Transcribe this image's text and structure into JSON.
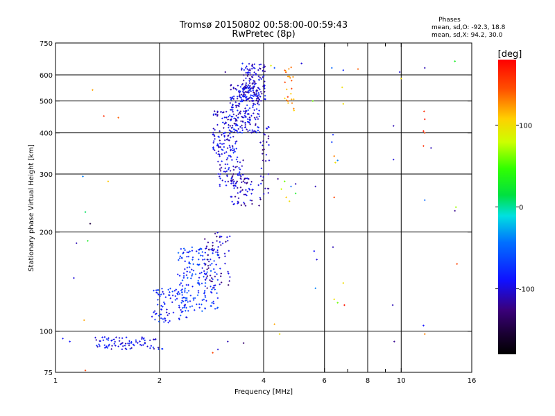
{
  "chart_data": {
    "type": "scatter",
    "title": "Tromsø 20150802 00:58:00-00:59:43",
    "subtitle": "RwPretec (8p)",
    "xlabel": "Frequency [MHz]",
    "ylabel": "Stationary phase Virtual Height [km]",
    "x_scale": "log",
    "y_scale": "log",
    "xlim": [
      1,
      16
    ],
    "ylim": [
      75,
      750
    ],
    "x_ticks": [
      1,
      2,
      4,
      6,
      8,
      10,
      16
    ],
    "x_tick_labels": [
      "1",
      "2",
      "4",
      "6",
      "8",
      "10",
      "16"
    ],
    "x_minor_ticks": [
      7,
      9
    ],
    "x_gridlines": [
      2,
      4,
      6,
      8,
      10
    ],
    "y_ticks": [
      75,
      100,
      200,
      300,
      400,
      500,
      600,
      750
    ],
    "y_tick_labels": [
      "75",
      "100",
      "200",
      "300",
      "400",
      "500",
      "600",
      "750"
    ],
    "y_gridlines": [
      100,
      200,
      300,
      400,
      500,
      600
    ],
    "grid": true,
    "phases_info": {
      "title": "Phases",
      "line1": "mean, sd,O: -92.3, 18.8",
      "line2": "mean, sd,X:  94.2, 30.0"
    },
    "colorbar": {
      "label": "[deg]",
      "min": -180,
      "max": 180,
      "ticks": [
        100,
        0,
        -100
      ],
      "tick_labels": [
        "100",
        "0",
        "-100"
      ]
    },
    "series": [
      {
        "clusters": [
          {
            "f": [
              1.3,
              1.85
            ],
            "h": [
              88,
              96
            ],
            "phase": -95,
            "n": 70
          },
          {
            "f": [
              1.87,
              2.05
            ],
            "h": [
              88,
              95
            ],
            "phase": -90,
            "n": 12
          },
          {
            "f": [
              1.9,
              2.4
            ],
            "h": [
              105,
              135
            ],
            "phase": -80,
            "n": 80
          },
          {
            "f": [
              2.25,
              2.95
            ],
            "h": [
              115,
              180
            ],
            "phase": -75,
            "n": 170
          },
          {
            "f": [
              2.7,
              3.2
            ],
            "h": [
              135,
              200
            ],
            "phase": -110,
            "n": 70
          },
          {
            "f": [
              2.85,
              3.35
            ],
            "h": [
              340,
              470
            ],
            "phase": -95,
            "n": 120
          },
          {
            "f": [
              2.95,
              3.5
            ],
            "h": [
              270,
              340
            ],
            "phase": -100,
            "n": 60
          },
          {
            "f": [
              3.2,
              3.75
            ],
            "h": [
              240,
              300
            ],
            "phase": -105,
            "n": 60
          },
          {
            "f": [
              3.2,
              3.9
            ],
            "h": [
              400,
              560
            ],
            "phase": -95,
            "n": 200
          },
          {
            "f": [
              3.45,
              4.05
            ],
            "h": [
              500,
              650
            ],
            "phase": -100,
            "n": 130
          },
          {
            "f": [
              3.85,
              4.15
            ],
            "h": [
              240,
              420
            ],
            "phase": -110,
            "n": 35
          },
          {
            "f": [
              4.6,
              4.9
            ],
            "h": [
              460,
              640
            ],
            "phase": 130,
            "n": 24
          }
        ],
        "points": [
          {
            "f": 1.05,
            "h": 95,
            "phase": -90
          },
          {
            "f": 1.1,
            "h": 93,
            "phase": -90
          },
          {
            "f": 1.13,
            "h": 145,
            "phase": -100
          },
          {
            "f": 1.15,
            "h": 185,
            "phase": -110
          },
          {
            "f": 1.2,
            "h": 295,
            "phase": -40
          },
          {
            "f": 1.22,
            "h": 230,
            "phase": 10
          },
          {
            "f": 1.24,
            "h": 188,
            "phase": 30
          },
          {
            "f": 1.26,
            "h": 212,
            "phase": -150
          },
          {
            "f": 1.28,
            "h": 540,
            "phase": 120
          },
          {
            "f": 1.21,
            "h": 108,
            "phase": 120
          },
          {
            "f": 1.22,
            "h": 76,
            "phase": 150
          },
          {
            "f": 1.38,
            "h": 450,
            "phase": 160
          },
          {
            "f": 1.42,
            "h": 285,
            "phase": 110
          },
          {
            "f": 1.52,
            "h": 445,
            "phase": 140
          },
          {
            "f": 2.85,
            "h": 86,
            "phase": 150
          },
          {
            "f": 2.95,
            "h": 88,
            "phase": -100
          },
          {
            "f": 3.15,
            "h": 93,
            "phase": -110
          },
          {
            "f": 3.5,
            "h": 92,
            "phase": -130
          },
          {
            "f": 4.3,
            "h": 105,
            "phase": 120
          },
          {
            "f": 4.45,
            "h": 98,
            "phase": 100
          },
          {
            "f": 4.5,
            "h": 270,
            "phase": 80
          },
          {
            "f": 4.6,
            "h": 285,
            "phase": 60
          },
          {
            "f": 4.65,
            "h": 255,
            "phase": 110
          },
          {
            "f": 4.75,
            "h": 248,
            "phase": 100
          },
          {
            "f": 4.8,
            "h": 275,
            "phase": -50
          },
          {
            "f": 4.95,
            "h": 280,
            "phase": -110
          },
          {
            "f": 4.95,
            "h": 262,
            "phase": 30
          },
          {
            "f": 3.1,
            "h": 612,
            "phase": -120
          },
          {
            "f": 3.55,
            "h": 630,
            "phase": -100
          },
          {
            "f": 4.2,
            "h": 640,
            "phase": 90
          },
          {
            "f": 4.3,
            "h": 630,
            "phase": -60
          },
          {
            "f": 4.15,
            "h": 330,
            "phase": -100
          },
          {
            "f": 4.4,
            "h": 290,
            "phase": -120
          },
          {
            "f": 5.15,
            "h": 650,
            "phase": -100
          },
          {
            "f": 5.55,
            "h": 500,
            "phase": 60
          },
          {
            "f": 5.65,
            "h": 275,
            "phase": -110
          },
          {
            "f": 5.6,
            "h": 175,
            "phase": -90
          },
          {
            "f": 5.7,
            "h": 165,
            "phase": -100
          },
          {
            "f": 5.65,
            "h": 135,
            "phase": -40
          },
          {
            "f": 6.3,
            "h": 630,
            "phase": -50
          },
          {
            "f": 6.35,
            "h": 395,
            "phase": -80
          },
          {
            "f": 6.3,
            "h": 375,
            "phase": -70
          },
          {
            "f": 6.4,
            "h": 340,
            "phase": 130
          },
          {
            "f": 6.45,
            "h": 325,
            "phase": 100
          },
          {
            "f": 6.55,
            "h": 330,
            "phase": -40
          },
          {
            "f": 6.4,
            "h": 255,
            "phase": 150
          },
          {
            "f": 6.35,
            "h": 180,
            "phase": -110
          },
          {
            "f": 6.4,
            "h": 125,
            "phase": 100
          },
          {
            "f": 6.55,
            "h": 122,
            "phase": 60
          },
          {
            "f": 6.8,
            "h": 620,
            "phase": -80
          },
          {
            "f": 6.75,
            "h": 550,
            "phase": 100
          },
          {
            "f": 6.8,
            "h": 490,
            "phase": 100
          },
          {
            "f": 6.8,
            "h": 140,
            "phase": 100
          },
          {
            "f": 6.85,
            "h": 120,
            "phase": 170
          },
          {
            "f": 7.5,
            "h": 625,
            "phase": 140
          },
          {
            "f": 9.5,
            "h": 420,
            "phase": -110
          },
          {
            "f": 9.5,
            "h": 332,
            "phase": -100
          },
          {
            "f": 9.45,
            "h": 120,
            "phase": -110
          },
          {
            "f": 9.55,
            "h": 93,
            "phase": -120
          },
          {
            "f": 9.9,
            "h": 612,
            "phase": -100
          },
          {
            "f": 10,
            "h": 585,
            "phase": 100
          },
          {
            "f": 11.7,
            "h": 630,
            "phase": -110
          },
          {
            "f": 11.65,
            "h": 465,
            "phase": 160
          },
          {
            "f": 11.7,
            "h": 440,
            "phase": 170
          },
          {
            "f": 11.6,
            "h": 405,
            "phase": 170
          },
          {
            "f": 11.7,
            "h": 400,
            "phase": 150
          },
          {
            "f": 11.6,
            "h": 365,
            "phase": 160
          },
          {
            "f": 12.2,
            "h": 360,
            "phase": -110
          },
          {
            "f": 11.7,
            "h": 250,
            "phase": -50
          },
          {
            "f": 11.6,
            "h": 104,
            "phase": -90
          },
          {
            "f": 11.7,
            "h": 98,
            "phase": 130
          },
          {
            "f": 14.3,
            "h": 660,
            "phase": 30
          },
          {
            "f": 14.4,
            "h": 238,
            "phase": 70
          },
          {
            "f": 14.3,
            "h": 232,
            "phase": -120
          },
          {
            "f": 14.5,
            "h": 160,
            "phase": 150
          }
        ]
      }
    ]
  }
}
